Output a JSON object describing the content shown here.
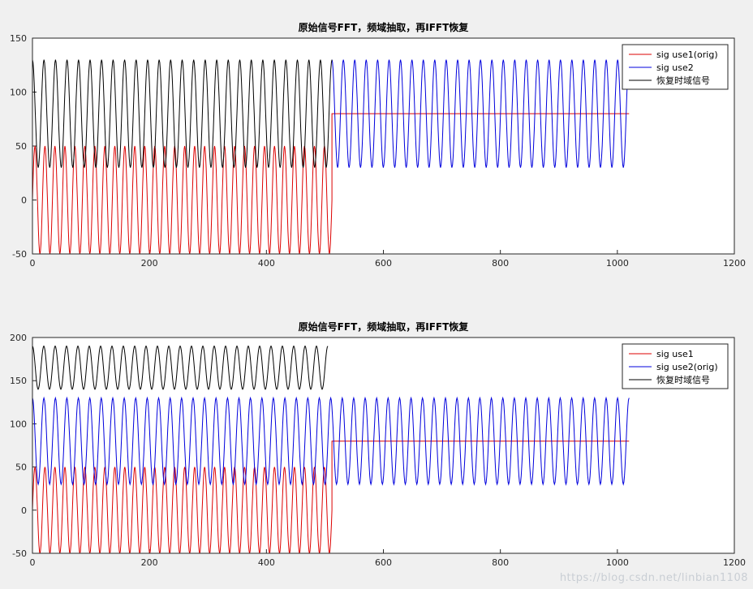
{
  "figure": {
    "background": "#f0f0f0",
    "watermark": "https://blog.csdn.net/linbian1108"
  },
  "chart_data": [
    {
      "type": "line",
      "title": "原始信号FFT，频域抽取，再IFFT恢复",
      "xlabel": "",
      "ylabel": "",
      "xlim": [
        0,
        1200
      ],
      "ylim": [
        -50,
        150
      ],
      "xticks": [
        0,
        200,
        400,
        600,
        800,
        1000,
        1200
      ],
      "yticks": [
        -50,
        0,
        50,
        100,
        150
      ],
      "grid": false,
      "legend_position": "top-right",
      "legend": [
        {
          "label": "sig use1(orig)",
          "color": "#dd0000"
        },
        {
          "label": "sig use2",
          "color": "#0000dd"
        },
        {
          "label": "恢复时域信号",
          "color": "#000000"
        }
      ],
      "series": [
        {
          "name": "sig use1(orig)",
          "color": "#dd0000",
          "segments": [
            {
              "kind": "sine",
              "x0": 0,
              "x1": 512,
              "amplitude": 50,
              "offset": 0,
              "cycles": 30,
              "phase_deg": 0
            },
            {
              "kind": "const",
              "x0": 512,
              "x1": 1020,
              "value": 80
            }
          ]
        },
        {
          "name": "sig use2",
          "color": "#0000dd",
          "segments": [
            {
              "kind": "sine",
              "x0": 512,
              "x1": 1020,
              "amplitude": 50,
              "offset": 80,
              "cycles": 26,
              "phase_deg": 90
            }
          ]
        },
        {
          "name": "恢复时域信号",
          "color": "#000000",
          "segments": [
            {
              "kind": "sine",
              "x0": 0,
              "x1": 512,
              "amplitude": 50,
              "offset": 80,
              "cycles": 26,
              "phase_deg": 90
            }
          ]
        }
      ]
    },
    {
      "type": "line",
      "title": "原始信号FFT，频域抽取，再IFFT恢复",
      "xlabel": "",
      "ylabel": "",
      "xlim": [
        0,
        1200
      ],
      "ylim": [
        -50,
        200
      ],
      "xticks": [
        0,
        200,
        400,
        600,
        800,
        1000,
        1200
      ],
      "yticks": [
        -50,
        0,
        50,
        100,
        150,
        200
      ],
      "grid": false,
      "legend_position": "top-right",
      "legend": [
        {
          "label": "sig use1",
          "color": "#dd0000"
        },
        {
          "label": "sig use2(orig)",
          "color": "#0000dd"
        },
        {
          "label": "恢复时域信号",
          "color": "#000000"
        }
      ],
      "series": [
        {
          "name": "sig use1",
          "color": "#dd0000",
          "segments": [
            {
              "kind": "sine",
              "x0": 0,
              "x1": 512,
              "amplitude": 50,
              "offset": 0,
              "cycles": 30,
              "phase_deg": 0
            },
            {
              "kind": "const",
              "x0": 512,
              "x1": 1020,
              "value": 80
            }
          ]
        },
        {
          "name": "sig use2(orig)",
          "color": "#0000dd",
          "segments": [
            {
              "kind": "sine",
              "x0": 0,
              "x1": 1020,
              "amplitude": 50,
              "offset": 80,
              "cycles": 52,
              "phase_deg": 90
            }
          ]
        },
        {
          "name": "恢复时域信号",
          "color": "#000000",
          "segments": [
            {
              "kind": "sine",
              "x0": 0,
              "x1": 505,
              "amplitude": 25,
              "offset": 165,
              "cycles": 26,
              "phase_deg": 90
            }
          ]
        }
      ]
    }
  ]
}
